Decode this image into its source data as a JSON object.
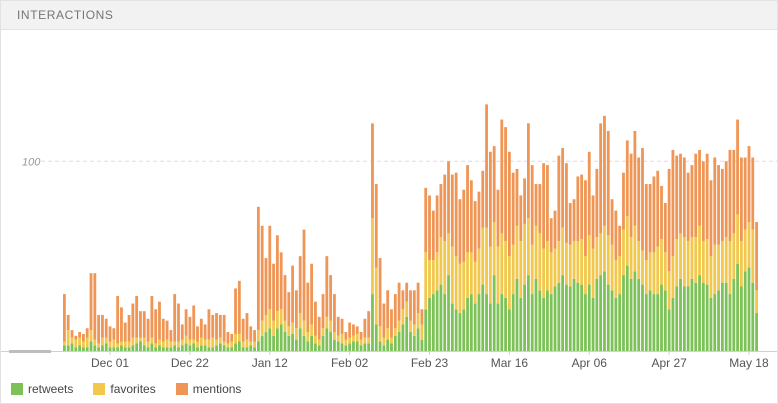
{
  "header": {
    "title": "INTERACTIONS"
  },
  "colors": {
    "retweets": "#7dc258",
    "favorites": "#f1c74c",
    "mentions": "#ef9555",
    "grid": "#e6d6e3"
  },
  "chart_data": {
    "type": "bar",
    "stacked": true,
    "y_gridline": 100,
    "ylim": [
      0,
      165
    ],
    "tick_labels": [
      "Dec 01",
      "Dec 22",
      "Jan 12",
      "Feb 02",
      "Feb 23",
      "Mar 16",
      "Apr 06",
      "Apr 27",
      "May 18"
    ],
    "tick_positions": [
      12,
      33,
      54,
      75,
      96,
      117,
      138,
      159,
      180
    ],
    "y_tick_label": "100",
    "series": [
      {
        "name": "retweets",
        "values": [
          3,
          3,
          4,
          2,
          3,
          2,
          2,
          5,
          3,
          2,
          3,
          4,
          2,
          2,
          2,
          3,
          2,
          2,
          3,
          4,
          5,
          3,
          2,
          4,
          2,
          3,
          2,
          2,
          2,
          3,
          2,
          3,
          4,
          3,
          4,
          2,
          3,
          3,
          2,
          2,
          3,
          4,
          3,
          2,
          2,
          4,
          5,
          2,
          2,
          3,
          2,
          5,
          8,
          10,
          12,
          8,
          12,
          14,
          10,
          8,
          9,
          6,
          12,
          8,
          5,
          8,
          4,
          3,
          8,
          12,
          10,
          6,
          5,
          4,
          3,
          4,
          5,
          5,
          3,
          4,
          4,
          30,
          14,
          5,
          3,
          6,
          4,
          8,
          10,
          14,
          18,
          10,
          8,
          12,
          6,
          22,
          28,
          30,
          32,
          35,
          30,
          40,
          25,
          22,
          20,
          22,
          28,
          30,
          25,
          30,
          35,
          30,
          25,
          40,
          25,
          30,
          28,
          22,
          30,
          38,
          28,
          35,
          40,
          30,
          38,
          32,
          28,
          32,
          30,
          34,
          36,
          40,
          35,
          34,
          38,
          36,
          35,
          30,
          35,
          28,
          38,
          40,
          42,
          35,
          32,
          28,
          30,
          40,
          45,
          38,
          42,
          38,
          35,
          30,
          32,
          30,
          30,
          35,
          32,
          22,
          28,
          34,
          38,
          34,
          34,
          38,
          36,
          40,
          36,
          35,
          28,
          30,
          32,
          36,
          36,
          30,
          38,
          46,
          34,
          42,
          44,
          36,
          20
        ]
      },
      {
        "name": "favorites",
        "values": [
          2,
          8,
          3,
          4,
          4,
          3,
          5,
          6,
          3,
          2,
          4,
          3,
          3,
          4,
          2,
          2,
          3,
          3,
          4,
          3,
          2,
          4,
          3,
          3,
          2,
          3,
          3,
          4,
          3,
          2,
          3,
          3,
          4,
          3,
          2,
          3,
          4,
          3,
          4,
          5,
          3,
          3,
          2,
          2,
          3,
          5,
          4,
          3,
          4,
          2,
          3,
          6,
          8,
          9,
          10,
          8,
          9,
          8,
          6,
          5,
          6,
          6,
          8,
          8,
          5,
          6,
          4,
          3,
          4,
          6,
          6,
          4,
          3,
          5,
          3,
          3,
          3,
          4,
          3,
          3,
          3,
          40,
          30,
          8,
          4,
          6,
          3,
          4,
          6,
          8,
          8,
          6,
          6,
          8,
          8,
          30,
          20,
          18,
          20,
          25,
          28,
          22,
          30,
          28,
          26,
          25,
          24,
          22,
          22,
          24,
          30,
          35,
          30,
          28,
          30,
          32,
          30,
          28,
          26,
          28,
          30,
          32,
          30,
          26,
          28,
          30,
          26,
          26,
          22,
          20,
          22,
          25,
          22,
          22,
          20,
          22,
          24,
          20,
          26,
          26,
          22,
          22,
          24,
          26,
          24,
          20,
          20,
          24,
          26,
          22,
          24,
          20,
          18,
          18,
          20,
          22,
          25,
          24,
          20,
          20,
          22,
          25,
          24,
          26,
          24,
          22,
          24,
          26,
          22,
          24,
          22,
          26,
          24,
          22,
          24,
          28,
          24,
          26,
          24,
          22,
          24,
          28,
          12
        ]
      },
      {
        "name": "mentions",
        "values": [
          25,
          8,
          4,
          2,
          3,
          4,
          5,
          30,
          35,
          15,
          12,
          10,
          8,
          6,
          25,
          18,
          10,
          14,
          18,
          22,
          14,
          14,
          12,
          22,
          18,
          20,
          12,
          10,
          6,
          25,
          20,
          8,
          14,
          12,
          18,
          8,
          10,
          8,
          16,
          12,
          14,
          12,
          14,
          6,
          4,
          24,
          28,
          12,
          14,
          8,
          6,
          65,
          50,
          30,
          44,
          30,
          40,
          30,
          24,
          18,
          30,
          20,
          30,
          48,
          26,
          32,
          18,
          12,
          18,
          32,
          24,
          20,
          10,
          8,
          4,
          8,
          6,
          4,
          4,
          10,
          14,
          50,
          44,
          36,
          18,
          20,
          15,
          18,
          20,
          10,
          10,
          16,
          18,
          16,
          8,
          34,
          34,
          26,
          30,
          28,
          35,
          38,
          38,
          44,
          34,
          38,
          46,
          38,
          32,
          30,
          30,
          65,
          50,
          40,
          30,
          60,
          60,
          55,
          38,
          30,
          24,
          24,
          50,
          42,
          22,
          26,
          45,
          40,
          18,
          20,
          45,
          42,
          42,
          22,
          22,
          34,
          34,
          40,
          44,
          28,
          36,
          58,
          58,
          55,
          24,
          26,
          16,
          30,
          40,
          44,
          50,
          44,
          54,
          40,
          36,
          40,
          40,
          28,
          26,
          54,
          56,
          44,
          42,
          42,
          36,
          38,
          44,
          40,
          42,
          45,
          40,
          46,
          42,
          38,
          40,
          48,
          44,
          50,
          44,
          38,
          40,
          38,
          36
        ]
      }
    ]
  },
  "legend": [
    {
      "key": "retweets",
      "label": "retweets"
    },
    {
      "key": "favorites",
      "label": "favorites"
    },
    {
      "key": "mentions",
      "label": "mentions"
    }
  ]
}
